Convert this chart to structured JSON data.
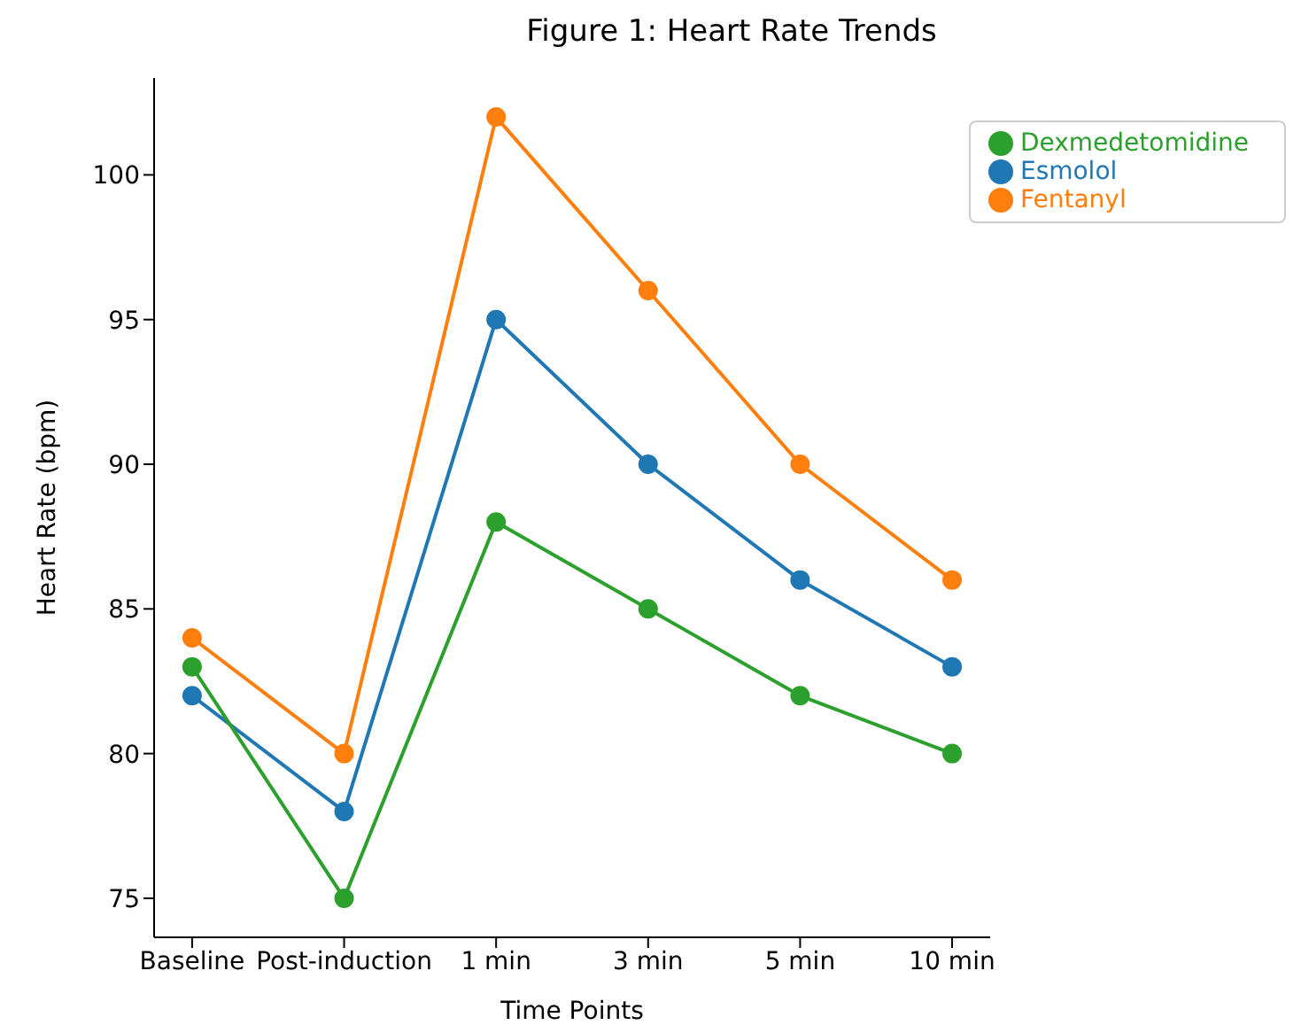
{
  "chart_data": {
    "type": "line",
    "title": "Figure 1: Heart Rate Trends",
    "xlabel": "Time Points",
    "ylabel": "Heart Rate (bpm)",
    "categories": [
      "Baseline",
      "Post-induction",
      "1 min",
      "3 min",
      "5 min",
      "10 min"
    ],
    "series": [
      {
        "name": "Esmolol",
        "color": "#1f77b4",
        "values": [
          82,
          78,
          95,
          90,
          86,
          83
        ]
      },
      {
        "name": "Fentanyl",
        "color": "#ff7f0e",
        "values": [
          84,
          80,
          102,
          96,
          90,
          86
        ]
      },
      {
        "name": "Dexmedetomidine",
        "color": "#2ca02c",
        "values": [
          83,
          75,
          88,
          85,
          82,
          80
        ]
      }
    ],
    "ylim": [
      73.65,
      103.35
    ],
    "yticks": [
      75,
      80,
      85,
      90,
      95,
      100
    ],
    "grid": false,
    "legend": "top right",
    "marker": "circle",
    "line_style": "solid"
  }
}
